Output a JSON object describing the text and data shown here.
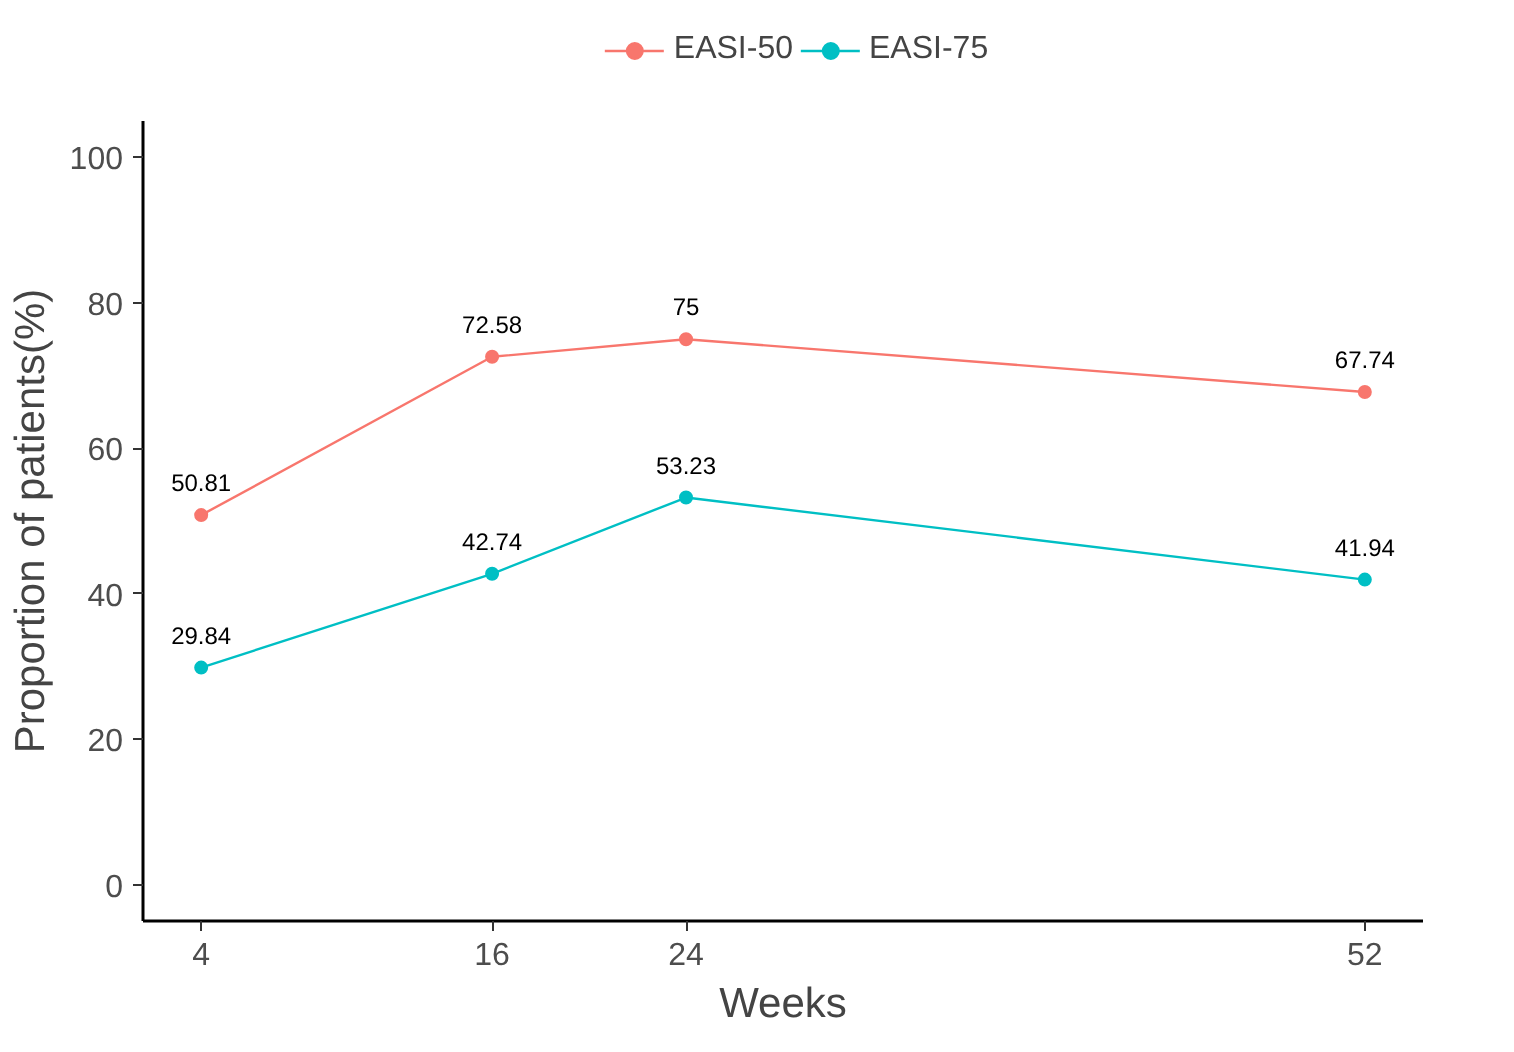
{
  "chart_data": {
    "type": "line",
    "xlabel": "Weeks",
    "ylabel": "Proportion of patients(%)",
    "x": [
      4,
      16,
      24,
      52
    ],
    "series": [
      {
        "name": "EASI-50",
        "color": "#f8766d",
        "values": [
          50.81,
          72.58,
          75,
          67.74
        ]
      },
      {
        "name": "EASI-75",
        "color": "#00bfc4",
        "values": [
          29.84,
          42.74,
          53.23,
          41.94
        ]
      }
    ],
    "xlim": [
      1.6,
      54.4
    ],
    "xticks": [
      4,
      16,
      24,
      52
    ],
    "ylim": [
      -5,
      105
    ],
    "yticks": [
      0,
      20,
      40,
      60,
      80,
      100
    ],
    "data_labels": true,
    "grid": false,
    "legend": "top",
    "marker": "circle",
    "line_style": "solid"
  }
}
